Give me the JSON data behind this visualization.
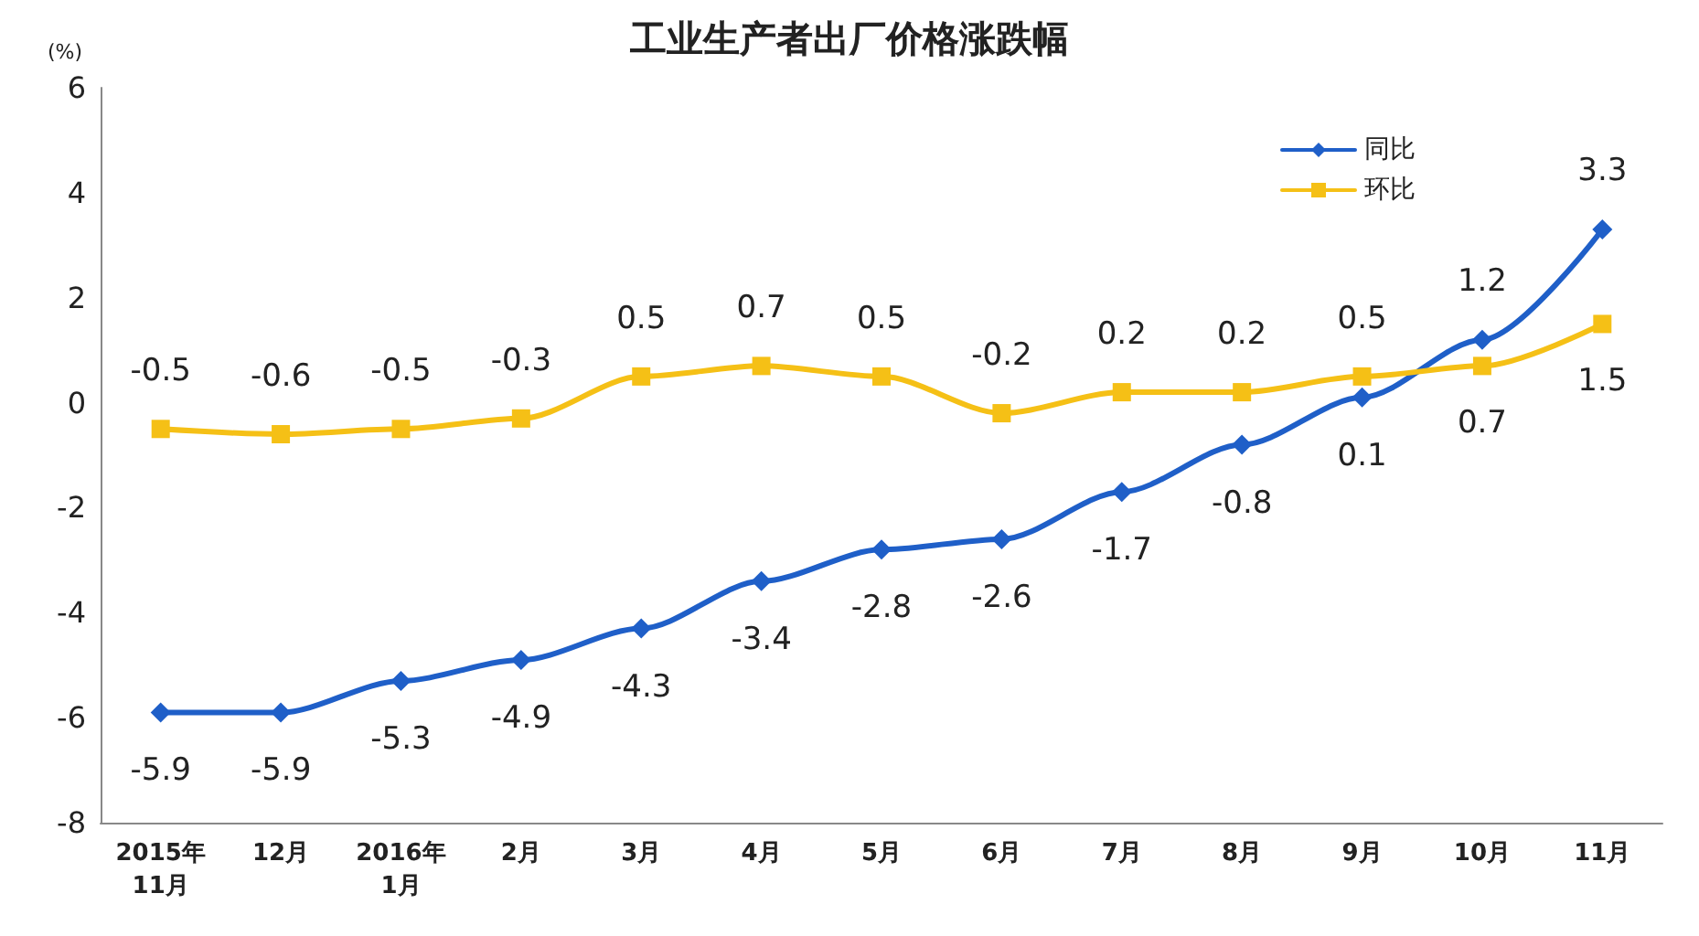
{
  "chart_data": {
    "type": "line",
    "title": "工业生产者出厂价格涨跌幅",
    "ylabel": "(%)",
    "categories": [
      "2015年\n11月",
      "12月",
      "2016年\n1月",
      "2月",
      "3月",
      "4月",
      "5月",
      "6月",
      "7月",
      "8月",
      "9月",
      "10月",
      "11月"
    ],
    "series": [
      {
        "name": "同比",
        "color": "#1f5fc8",
        "marker": "diamond",
        "values": [
          -5.9,
          -5.9,
          -5.3,
          -4.9,
          -4.3,
          -3.4,
          -2.8,
          -2.6,
          -1.7,
          -0.8,
          0.1,
          1.2,
          3.3
        ]
      },
      {
        "name": "环比",
        "color": "#f5c016",
        "marker": "square",
        "values": [
          -0.5,
          -0.6,
          -0.5,
          -0.3,
          0.5,
          0.7,
          0.5,
          -0.2,
          0.2,
          0.2,
          0.5,
          0.7,
          1.5
        ]
      }
    ],
    "ylim": [
      -8,
      6
    ],
    "yticks": [
      -8,
      -6,
      -4,
      -2,
      0,
      2,
      4,
      6
    ],
    "grid": false,
    "legend": "top right",
    "data_labels": true,
    "line_style": "solid"
  }
}
